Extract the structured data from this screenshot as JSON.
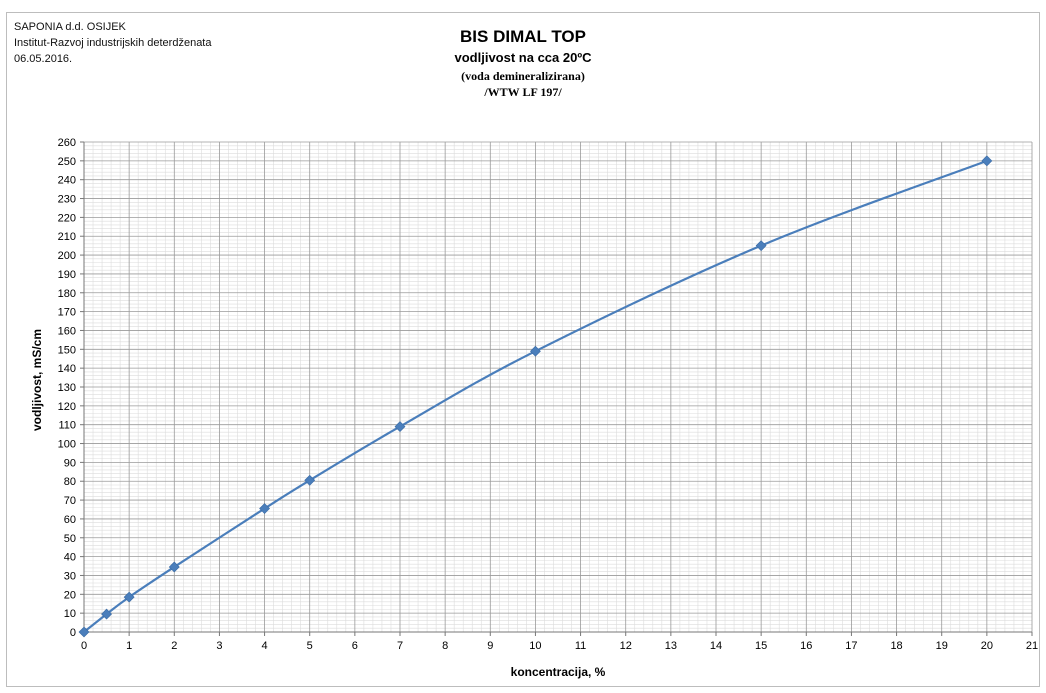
{
  "header": {
    "company": "SAPONIA d.d. OSIJEK",
    "institute": "Institut-Razvoj industrijskih deterdženata",
    "date": "06.05.2016."
  },
  "chart_data": {
    "type": "line",
    "title": "BIS DIMAL TOP",
    "subtitle": "vodljivost na  cca 20ºC",
    "subtitle2": "(voda demineralizirana)",
    "subtitle3": "/WTW LF 197/",
    "xlabel": "koncentracija, %",
    "ylabel": "vodljivost, mS/cm",
    "xlim": [
      0,
      21
    ],
    "ylim": [
      0,
      260
    ],
    "xticks": [
      0,
      1,
      2,
      3,
      4,
      5,
      6,
      7,
      8,
      9,
      10,
      11,
      12,
      13,
      14,
      15,
      16,
      17,
      18,
      19,
      20,
      21
    ],
    "yticks": [
      0,
      10,
      20,
      30,
      40,
      50,
      60,
      70,
      80,
      90,
      100,
      110,
      120,
      130,
      140,
      150,
      160,
      170,
      180,
      190,
      200,
      210,
      220,
      230,
      240,
      250,
      260
    ],
    "grid": true,
    "legend": "none",
    "series": [
      {
        "x": [
          0,
          0.5,
          1,
          2,
          4,
          5,
          7,
          10,
          15,
          20
        ],
        "y": [
          0,
          9.5,
          18.5,
          34.5,
          65.5,
          80.5,
          109,
          149,
          205,
          250
        ],
        "color": "#4a7ebb",
        "marker": "diamond"
      }
    ]
  }
}
